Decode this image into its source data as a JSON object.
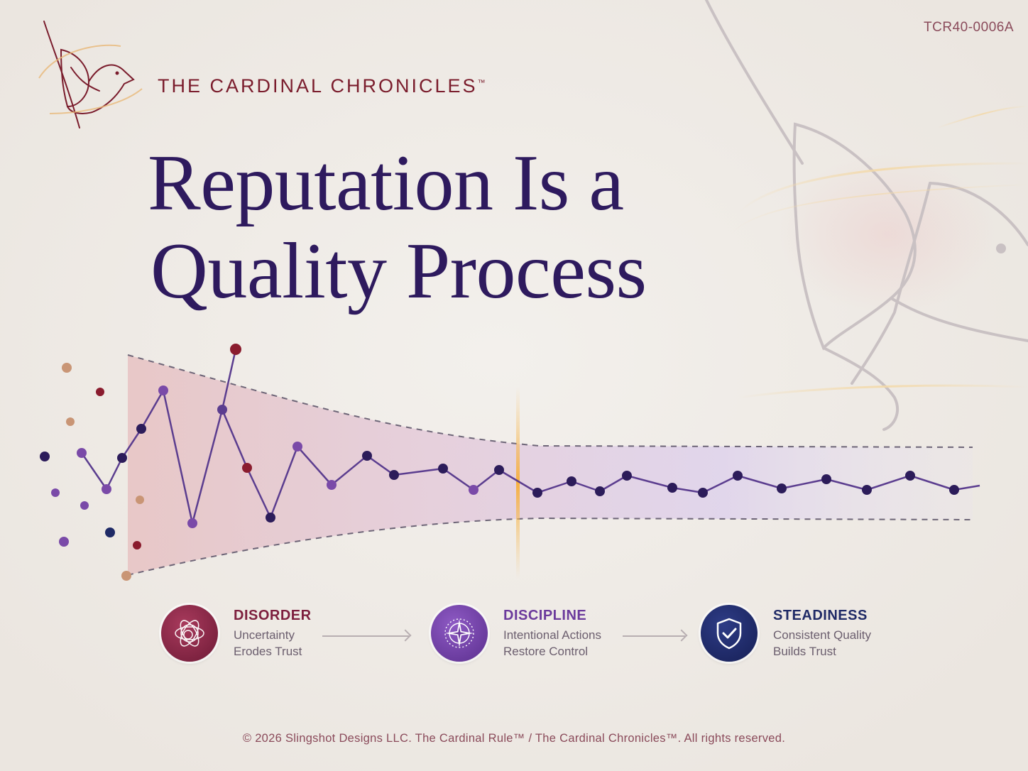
{
  "doc_code": "TCR40-0006A",
  "brand": {
    "name": "THE CARDINAL CHRONICLES",
    "trademark": "™"
  },
  "headline": {
    "line1": "Reputation Is a",
    "line2": "Quality Process"
  },
  "stages": [
    {
      "label": "DISORDER",
      "line1": "Uncertainty",
      "line2": "Erodes Trust",
      "icon": "orbit-scribble-icon",
      "color": "#7d1f3e"
    },
    {
      "label": "DISCIPLINE",
      "line1": "Intentional Actions",
      "line2": "Restore Control",
      "icon": "compass-star-icon",
      "color": "#6b3a9c"
    },
    {
      "label": "STEADINESS",
      "line1": "Consistent Quality",
      "line2": "Builds Trust",
      "icon": "shield-check-icon",
      "color": "#1f2a66"
    }
  ],
  "footer": "© 2026 Slingshot Designs LLC. The Cardinal Rule™ / The Cardinal Chronicles™. All rights reserved.",
  "colors": {
    "brand_red": "#7a1c2c",
    "headline_purple": "#2e1a5e",
    "navy": "#1f1a55",
    "purple": "#6b3a9c",
    "tan": "#c89676"
  }
}
